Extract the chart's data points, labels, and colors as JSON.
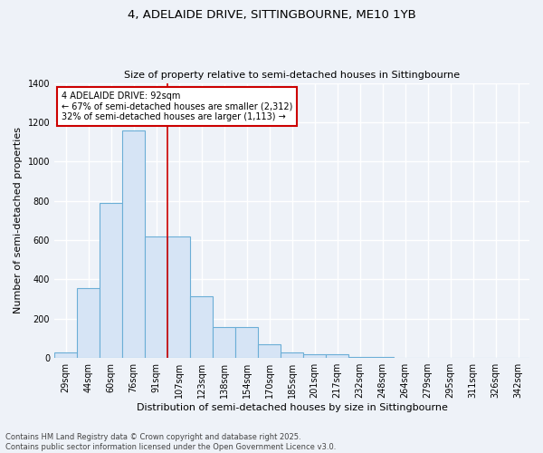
{
  "title_line1": "4, ADELAIDE DRIVE, SITTINGBOURNE, ME10 1YB",
  "title_line2": "Size of property relative to semi-detached houses in Sittingbourne",
  "xlabel": "Distribution of semi-detached houses by size in Sittingbourne",
  "ylabel": "Number of semi-detached properties",
  "categories": [
    "29sqm",
    "44sqm",
    "60sqm",
    "76sqm",
    "91sqm",
    "107sqm",
    "123sqm",
    "138sqm",
    "154sqm",
    "170sqm",
    "185sqm",
    "201sqm",
    "217sqm",
    "232sqm",
    "248sqm",
    "264sqm",
    "279sqm",
    "295sqm",
    "311sqm",
    "326sqm",
    "342sqm"
  ],
  "values": [
    30,
    355,
    790,
    1160,
    620,
    620,
    315,
    160,
    160,
    70,
    30,
    20,
    20,
    5,
    5,
    0,
    0,
    0,
    0,
    0,
    0
  ],
  "bar_color": "#d6e4f5",
  "bar_edge_color": "#6baed6",
  "property_line_bar_idx": 4,
  "annotation_title": "4 ADELAIDE DRIVE: 92sqm",
  "annotation_line2": "← 67% of semi-detached houses are smaller (2,312)",
  "annotation_line3": "32% of semi-detached houses are larger (1,113) →",
  "annotation_box_color": "#ffffff",
  "annotation_box_edge": "#cc0000",
  "footer_line1": "Contains HM Land Registry data © Crown copyright and database right 2025.",
  "footer_line2": "Contains public sector information licensed under the Open Government Licence v3.0.",
  "ylim": [
    0,
    1400
  ],
  "background_color": "#eef2f8",
  "plot_background": "#eef2f8",
  "grid_color": "#ffffff"
}
